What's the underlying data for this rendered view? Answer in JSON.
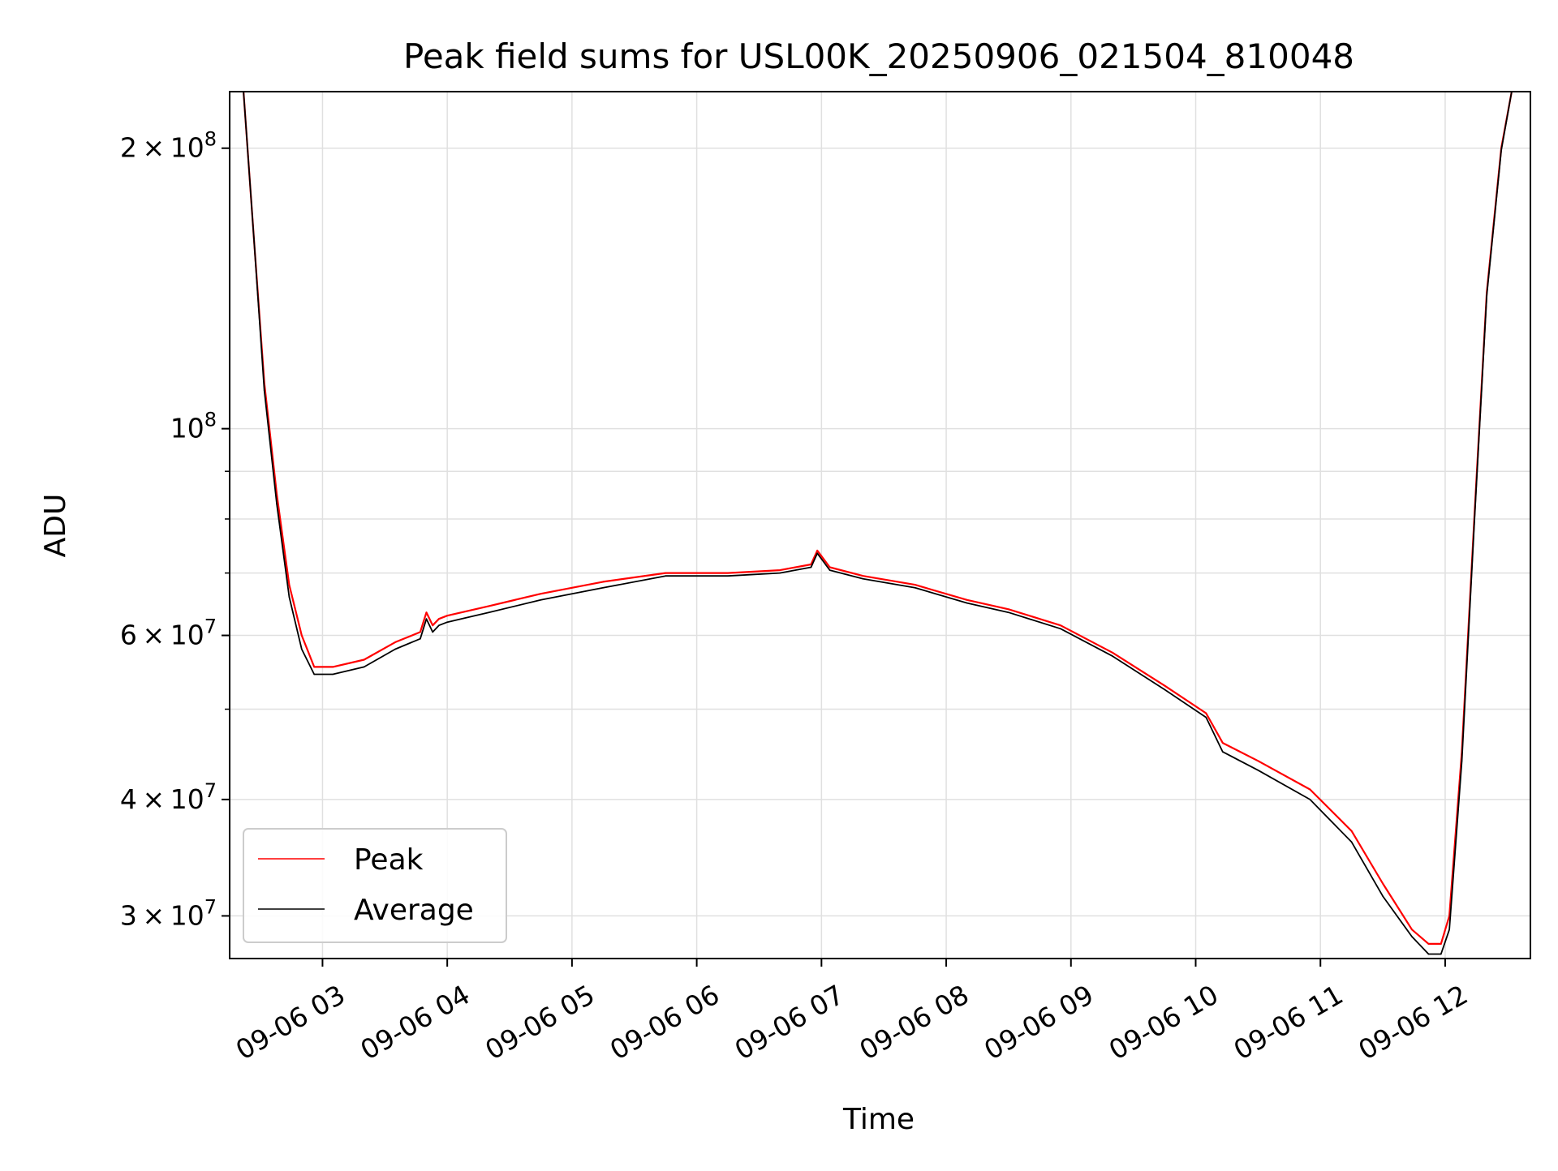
{
  "chart_data": {
    "type": "line",
    "title": "Peak field sums for USL00K_20250906_021504_810048",
    "xlabel": "Time",
    "ylabel": "ADU",
    "yscale": "log",
    "ylim": [
      27000000,
      230000000
    ],
    "xlim": [
      "2025-09-06 02:15:20",
      "2025-09-06 12:41:00"
    ],
    "grid": true,
    "legend_position": "lower-left",
    "x_tick_labels": [
      "09-06 03",
      "09-06 04",
      "09-06 05",
      "09-06 06",
      "09-06 07",
      "09-06 08",
      "09-06 09",
      "09-06 10",
      "09-06 11",
      "09-06 12"
    ],
    "x_ticks": [
      "2025-09-06 03:00",
      "2025-09-06 04:00",
      "2025-09-06 05:00",
      "2025-09-06 06:00",
      "2025-09-06 07:00",
      "2025-09-06 08:00",
      "2025-09-06 09:00",
      "2025-09-06 10:00",
      "2025-09-06 11:00",
      "2025-09-06 12:00"
    ],
    "y_ticks": [
      {
        "value": 200000000,
        "mantissa": "2",
        "exp": "8"
      },
      {
        "value": 100000000,
        "mantissa": "",
        "exp": "8"
      },
      {
        "value": 60000000,
        "mantissa": "6",
        "exp": "7"
      },
      {
        "value": 40000000,
        "mantissa": "4",
        "exp": "7"
      },
      {
        "value": 30000000,
        "mantissa": "3",
        "exp": "7"
      }
    ],
    "y_minor_ticks": [
      50000000,
      70000000,
      80000000,
      90000000
    ],
    "x": [
      "2025-09-06 02:22",
      "2025-09-06 02:27",
      "2025-09-06 02:32",
      "2025-09-06 02:38",
      "2025-09-06 02:44",
      "2025-09-06 02:50",
      "2025-09-06 02:56",
      "2025-09-06 03:05",
      "2025-09-06 03:20",
      "2025-09-06 03:35",
      "2025-09-06 03:47",
      "2025-09-06 03:50",
      "2025-09-06 03:53",
      "2025-09-06 03:56",
      "2025-09-06 04:00",
      "2025-09-06 04:20",
      "2025-09-06 04:45",
      "2025-09-06 05:15",
      "2025-09-06 05:45",
      "2025-09-06 06:15",
      "2025-09-06 06:40",
      "2025-09-06 06:55",
      "2025-09-06 06:58",
      "2025-09-06 07:04",
      "2025-09-06 07:20",
      "2025-09-06 07:45",
      "2025-09-06 08:10",
      "2025-09-06 08:30",
      "2025-09-06 08:55",
      "2025-09-06 09:20",
      "2025-09-06 09:45",
      "2025-09-06 10:05",
      "2025-09-06 10:13",
      "2025-09-06 10:30",
      "2025-09-06 10:55",
      "2025-09-06 11:15",
      "2025-09-06 11:30",
      "2025-09-06 11:44",
      "2025-09-06 11:52",
      "2025-09-06 11:58",
      "2025-09-06 12:02",
      "2025-09-06 12:08",
      "2025-09-06 12:14",
      "2025-09-06 12:20",
      "2025-09-06 12:27",
      "2025-09-06 12:32"
    ],
    "series": [
      {
        "name": "Peak",
        "color": "#ff0000",
        "values": [
          230000000,
          160000000,
          112000000,
          85000000,
          68000000,
          60000000,
          55500000,
          55500000,
          56500000,
          59000000,
          60500000,
          63500000,
          61500000,
          62500000,
          63000000,
          64500000,
          66500000,
          68500000,
          70000000,
          70000000,
          70500000,
          71500000,
          74000000,
          71000000,
          69500000,
          68000000,
          65500000,
          64000000,
          61500000,
          57500000,
          53000000,
          49500000,
          46000000,
          44000000,
          41000000,
          37000000,
          32500000,
          29000000,
          28000000,
          28000000,
          30000000,
          45000000,
          80000000,
          140000000,
          200000000,
          230000000
        ]
      },
      {
        "name": "Average",
        "color": "#000000",
        "values": [
          230000000,
          160000000,
          110000000,
          83000000,
          66000000,
          58000000,
          54500000,
          54500000,
          55500000,
          58000000,
          59500000,
          62500000,
          60500000,
          61500000,
          62000000,
          63500000,
          65500000,
          67500000,
          69500000,
          69500000,
          70000000,
          71000000,
          73500000,
          70500000,
          69000000,
          67500000,
          65000000,
          63500000,
          61000000,
          57000000,
          52500000,
          49000000,
          45000000,
          43000000,
          40000000,
          36000000,
          31500000,
          28500000,
          27300000,
          27300000,
          29000000,
          44000000,
          79000000,
          139000000,
          199000000,
          230000000
        ]
      }
    ]
  }
}
